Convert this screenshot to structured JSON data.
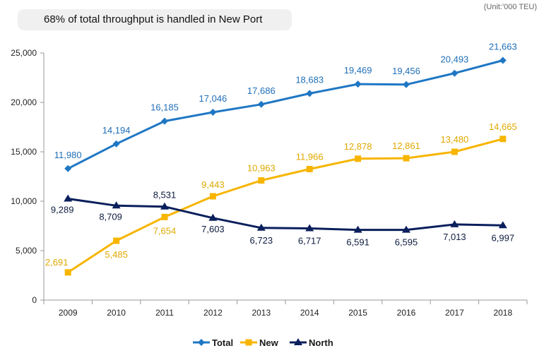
{
  "headline": "68% of total throughput is handled in New Port",
  "unit_note": "(Unit:'000 TEU)",
  "colors": {
    "total": "#1f77c4",
    "new": "#f7b500",
    "north": "#0a1f5c",
    "total_label": "#1f6fb8",
    "new_label": "#e0a800",
    "north_label": "#0d1b3e"
  },
  "chart_data": {
    "type": "line",
    "x": [
      "2009",
      "2010",
      "2011",
      "2012",
      "2013",
      "2014",
      "2015",
      "2016",
      "2017",
      "2018"
    ],
    "ylim": [
      0,
      25000
    ],
    "yticks": [
      0,
      5000,
      10000,
      15000,
      20000,
      25000
    ],
    "ytick_labels": [
      "0",
      "5,000",
      "10,000",
      "15,000",
      "20,000",
      "25,000"
    ],
    "legend_position": "bottom",
    "grid": false,
    "series": [
      {
        "name": "Total",
        "values": [
          13300,
          15800,
          18100,
          19000,
          19800,
          20900,
          21850,
          21800,
          22950,
          24250
        ],
        "labels": [
          "11,980",
          "14,194",
          "16,185",
          "17,046",
          "17,686",
          "18,683",
          "19,469",
          "19,456",
          "20,493",
          "21,663"
        ]
      },
      {
        "name": "New",
        "values": [
          2800,
          6000,
          8400,
          10500,
          12100,
          13250,
          14300,
          14350,
          15000,
          16300
        ],
        "labels": [
          "2,691",
          "5,485",
          "7,654",
          "9,443",
          "10,963",
          "11,966",
          "12,878",
          "12,861",
          "13,480",
          "14,665"
        ]
      },
      {
        "name": "North",
        "values": [
          10250,
          9550,
          9450,
          8300,
          7300,
          7250,
          7100,
          7100,
          7650,
          7550
        ],
        "labels": [
          "9,289",
          "8,709",
          "8,531",
          "7,603",
          "6,723",
          "6,717",
          "6,591",
          "6,595",
          "7,013",
          "6,997"
        ]
      }
    ]
  }
}
